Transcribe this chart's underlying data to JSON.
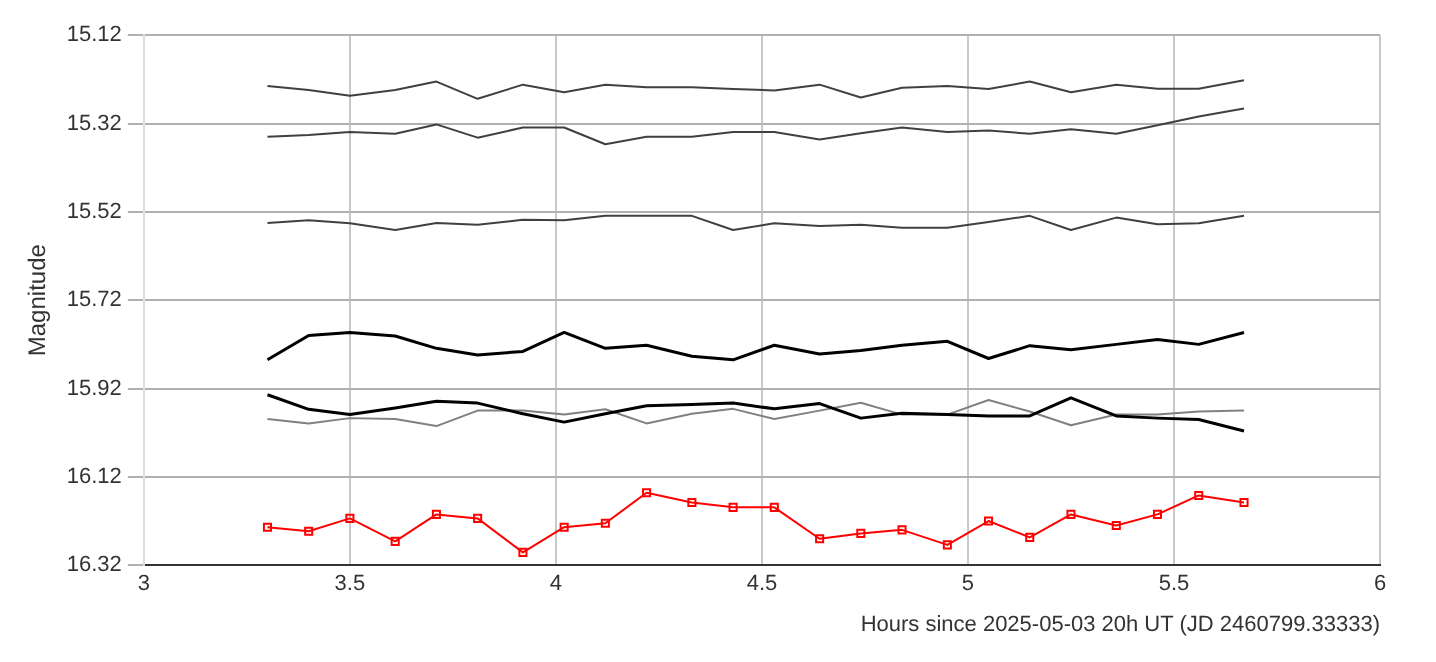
{
  "chart_data": {
    "type": "line",
    "xlabel": "Hours since 2025-05-03 20h UT (JD 2460799.33333)",
    "ylabel": "Magnitude",
    "x": [
      3.3,
      3.4,
      3.5,
      3.61,
      3.71,
      3.81,
      3.92,
      4.02,
      4.12,
      4.22,
      4.33,
      4.43,
      4.53,
      4.64,
      4.74,
      4.84,
      4.95,
      5.05,
      5.15,
      5.25,
      5.36,
      5.46,
      5.56,
      5.67
    ],
    "xlim": [
      3,
      6
    ],
    "xticks": [
      3,
      3.5,
      4,
      4.5,
      5,
      5.5,
      6
    ],
    "ylim": [
      16.32,
      15.12
    ],
    "yticks": [
      15.12,
      15.32,
      15.52,
      15.72,
      15.92,
      16.12,
      16.32
    ],
    "grid": true,
    "legend": false,
    "series": [
      {
        "color": "#404040",
        "marker": "none",
        "values": [
          15.235,
          15.244,
          15.257,
          15.244,
          15.225,
          15.264,
          15.232,
          15.249,
          15.232,
          15.238,
          15.238,
          15.242,
          15.245,
          15.232,
          15.261,
          15.239,
          15.235,
          15.242,
          15.225,
          15.249,
          15.232,
          15.241,
          15.241,
          15.222
        ]
      },
      {
        "color": "#404040",
        "marker": "none",
        "values": [
          15.35,
          15.346,
          15.339,
          15.343,
          15.322,
          15.352,
          15.329,
          15.329,
          15.367,
          15.35,
          15.35,
          15.339,
          15.339,
          15.356,
          15.342,
          15.329,
          15.339,
          15.336,
          15.343,
          15.333,
          15.343,
          15.324,
          15.304,
          15.286
        ]
      },
      {
        "color": "#404040",
        "marker": "none",
        "values": [
          15.545,
          15.539,
          15.546,
          15.561,
          15.545,
          15.549,
          15.538,
          15.539,
          15.529,
          15.529,
          15.529,
          15.561,
          15.546,
          15.552,
          15.549,
          15.556,
          15.556,
          15.543,
          15.529,
          15.561,
          15.533,
          15.548,
          15.546,
          15.529
        ]
      },
      {
        "color": "#000000",
        "marker": "none",
        "values": [
          15.855,
          15.8,
          15.793,
          15.801,
          15.829,
          15.844,
          15.836,
          15.793,
          15.829,
          15.822,
          15.847,
          15.855,
          15.822,
          15.842,
          15.834,
          15.822,
          15.813,
          15.852,
          15.823,
          15.832,
          15.82,
          15.809,
          15.82,
          15.793
        ]
      },
      {
        "color": "#000000",
        "marker": "none",
        "values": [
          15.934,
          15.967,
          15.979,
          15.964,
          15.949,
          15.953,
          15.977,
          15.996,
          15.977,
          15.959,
          15.956,
          15.953,
          15.966,
          15.954,
          15.987,
          15.976,
          15.979,
          15.982,
          15.982,
          15.941,
          15.982,
          15.987,
          15.99,
          16.016
        ]
      },
      {
        "color": "#808080",
        "marker": "none",
        "values": [
          15.989,
          15.999,
          15.987,
          15.989,
          16.005,
          15.97,
          15.97,
          15.979,
          15.967,
          15.999,
          15.977,
          15.966,
          15.989,
          15.97,
          15.952,
          15.979,
          15.979,
          15.946,
          15.972,
          16.003,
          15.979,
          15.979,
          15.972,
          15.97
        ]
      },
      {
        "color": "#ff0000",
        "marker": "square",
        "values": [
          16.234,
          16.243,
          16.214,
          16.266,
          16.205,
          16.214,
          16.291,
          16.234,
          16.225,
          16.156,
          16.178,
          16.189,
          16.189,
          16.26,
          16.248,
          16.24,
          16.274,
          16.22,
          16.257,
          16.205,
          16.23,
          16.205,
          16.162,
          16.178
        ]
      }
    ]
  }
}
